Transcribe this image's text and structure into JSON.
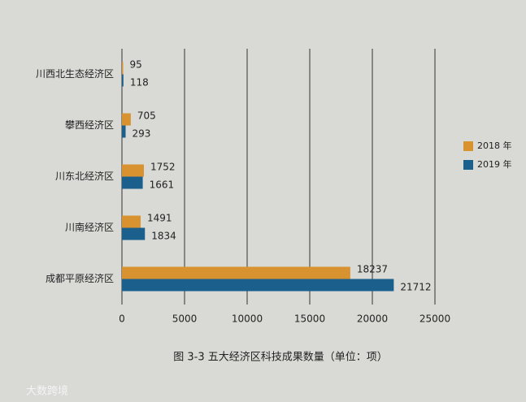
{
  "chart_data": {
    "type": "hbar",
    "caption": "图 3-3 五大经济区科技成果数量（单位：项）",
    "watermark": "大数跨境",
    "categories": [
      "川西北生态经济区",
      "攀西经济区",
      "川东北经济区",
      "川南经济区",
      "成都平原经济区"
    ],
    "series": [
      {
        "name": "2018 年",
        "color": "#d8922f",
        "values": [
          95,
          705,
          1752,
          1491,
          18237
        ]
      },
      {
        "name": "2019 年",
        "color": "#1b5f8c",
        "values": [
          118,
          293,
          1661,
          1834,
          21712
        ]
      }
    ],
    "xlim": [
      0,
      25000
    ],
    "xticks": [
      0,
      5000,
      10000,
      15000,
      20000,
      25000
    ],
    "grid": true,
    "legend": "right"
  }
}
